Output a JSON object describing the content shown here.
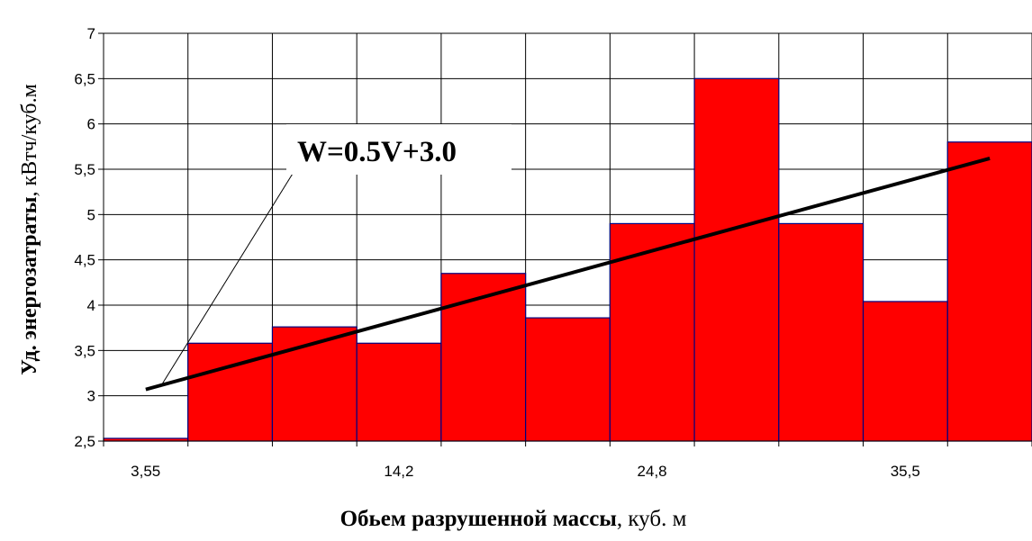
{
  "chart_data": {
    "type": "bar",
    "x_tick_labels": [
      "3,55",
      "14,2",
      "24,8",
      "35,5"
    ],
    "values": [
      2.53,
      3.58,
      3.76,
      3.58,
      4.35,
      3.86,
      4.9,
      6.5,
      4.9,
      4.04,
      5.8
    ],
    "ylim": [
      2.5,
      7
    ],
    "y_ticks": [
      "2,5",
      "3",
      "3,5",
      "4",
      "4,5",
      "5",
      "5,5",
      "6",
      "6,5",
      "7"
    ],
    "ylabel_bold": "Уд. энергозатраты",
    "ylabel_rest": ", кВтч/куб.м",
    "xlabel_bold": "Обьем разрушенной массы",
    "xlabel_rest": ", куб. м",
    "annotation": "W=0.5V+3.0",
    "trend_line": {
      "from_bar": 0.5,
      "y_start": 3.07,
      "to_bar": 10.5,
      "y_end": 5.62
    },
    "grid": true,
    "colors": {
      "bar_fill": "#ff0000",
      "bar_edge": "#000080",
      "grid": "#000000",
      "trend": "#000000"
    }
  }
}
